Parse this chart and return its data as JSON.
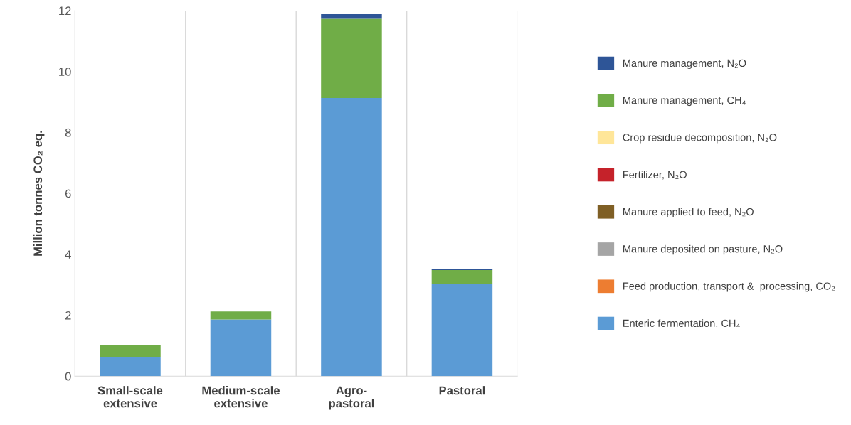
{
  "chart_data": {
    "type": "bar",
    "stacked": true,
    "ylabel": "Million tonnes CO₂ eq.",
    "categories": [
      "Small-scale\nextensive",
      "Medium-scale\nextensive",
      "Agro-\npastoral",
      "Pastoral"
    ],
    "ylim": [
      0,
      12
    ],
    "yticks": [
      0,
      2,
      4,
      6,
      8,
      10,
      12
    ],
    "grid": "x",
    "legend": "right",
    "series": [
      {
        "name": "Enteric fermentation, CH₄",
        "color": "#5b9bd5",
        "values": [
          0.61,
          1.86,
          9.13,
          3.03
        ]
      },
      {
        "name": "Feed production, transport &  processing, CO₂",
        "color": "#ed7d31",
        "values": [
          0,
          0,
          0,
          0
        ]
      },
      {
        "name": "Manure deposited on pasture, N₂O",
        "color": "#a5a5a5",
        "values": [
          0,
          0,
          null,
          0
        ]
      },
      {
        "name": "Manure applied to feed, N₂O",
        "color": "#7f5f25",
        "values": [
          0,
          0,
          0,
          0
        ]
      },
      {
        "name": "Fertilizer, N₂O",
        "color": "#c5222a",
        "values": [
          0,
          0,
          0,
          0
        ]
      },
      {
        "name": "Crop residue decomposition, N₂O",
        "color": "#ffe699",
        "values": [
          0,
          0,
          0,
          0
        ]
      },
      {
        "name": "Manure management, CH₄",
        "color": "#70ad47",
        "values": [
          0.4,
          0.26,
          2.6,
          0.45
        ]
      },
      {
        "name": "Manure management, N₂O",
        "color": "#2e5597",
        "values": [
          0,
          0,
          0.15,
          0.05
        ]
      }
    ]
  }
}
